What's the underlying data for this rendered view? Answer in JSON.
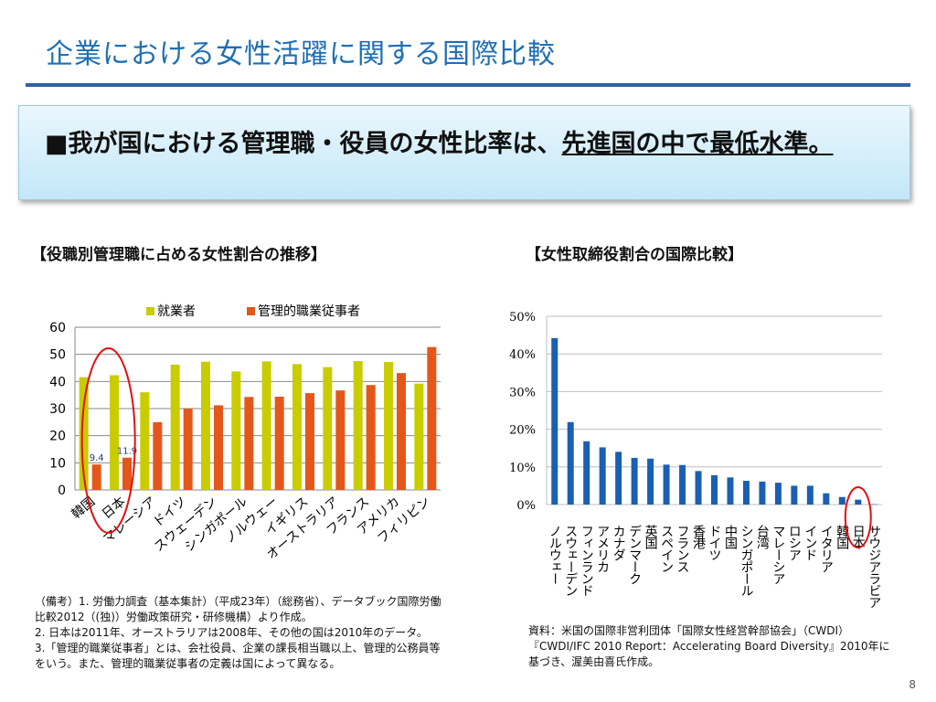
{
  "slide": {
    "title": "企業における女性活躍に関する国際比較",
    "callout": {
      "bullet": "■",
      "text_plain": "我が国における管理職・役員の女性比率は、",
      "text_underlined": "先進国の中で最低水準。"
    },
    "page_number": "8"
  },
  "left_chart": {
    "heading": "【役職別管理職に占める女性割合の推移】",
    "notes": [
      "（備考）1. 労働力調査（基本集計）（平成23年）（総務省）、データブック国際労働比較2012（(独)）労働政策研究・研修機構）より作成。",
      "2. 日本は2011年、オーストラリアは2008年、その他の国は2010年のデータ。",
      "3.「管理的職業従事者」とは、会社役員、企業の課長相当職以上、管理的公務員等をいう。また、管理的職業従事者の定義は国によって異なる。"
    ]
  },
  "right_chart": {
    "heading": "【女性取締役割合の国際比較】",
    "source": "資料：米国の国際非営利団体「国際女性経営幹部協会」（CWDI）『CWDI/IFC 2010 Report：Accelerating Board Diversity』2010年に基づき、渥美由喜氏作成。"
  },
  "chart_data": [
    {
      "type": "bar",
      "categories": [
        "韓国",
        "日本",
        "マレーシア",
        "ドイツ",
        "スウェーデン",
        "シンガポール",
        "ノルウェー",
        "イギリス",
        "オーストラリア",
        "フランス",
        "アメリカ",
        "フィリピン"
      ],
      "series": [
        {
          "name": "就業者",
          "color": "#c8cc00",
          "values": [
            41.6,
            42.3,
            36.0,
            46.2,
            47.3,
            43.7,
            47.4,
            46.4,
            45.3,
            47.5,
            47.2,
            39.2
          ]
        },
        {
          "name": "管理的職業従事者",
          "color": "#e4571b",
          "values": [
            9.4,
            11.9,
            25.0,
            30.0,
            31.2,
            34.3,
            34.4,
            35.7,
            36.7,
            38.7,
            43.1,
            52.7
          ]
        }
      ],
      "data_labels": [
        {
          "category": "韓国",
          "series": "管理的職業従事者",
          "text": "9.4"
        },
        {
          "category": "日本",
          "series": "管理的職業従事者",
          "text": "11.9"
        }
      ],
      "ylim": [
        0,
        60
      ],
      "yticks": [
        "0",
        "10",
        "20",
        "30",
        "40",
        "50",
        "60"
      ],
      "legend_position": "top",
      "grid": true,
      "highlight": {
        "categories": [
          "韓国",
          "日本"
        ],
        "shape": "ellipse",
        "color": "#e01010"
      }
    },
    {
      "type": "bar",
      "categories": [
        "ノルウェー",
        "スウェーデン",
        "フィンランド",
        "アメリカ",
        "カナダ",
        "デンマーク",
        "英国",
        "スペイン",
        "フランス",
        "香港",
        "ドイツ",
        "中国",
        "シンガポール",
        "台湾",
        "マレーシア",
        "ロシア",
        "インド",
        "イタリア",
        "韓国",
        "日本",
        "サウジアラビア"
      ],
      "series": [
        {
          "name": "",
          "color": "#1a5fb4",
          "values": [
            44.2,
            21.9,
            16.8,
            15.2,
            14.0,
            12.4,
            12.2,
            10.6,
            10.5,
            8.9,
            7.8,
            7.2,
            6.3,
            6.1,
            5.8,
            5.0,
            5.0,
            3.0,
            2.0,
            1.3,
            0.1
          ]
        }
      ],
      "ylim": [
        0,
        50
      ],
      "yticks": [
        "0%",
        "10%",
        "20%",
        "30%",
        "40%",
        "50%"
      ],
      "grid": true,
      "highlight": {
        "categories": [
          "日本"
        ],
        "shape": "ellipse",
        "color": "#e01010"
      }
    }
  ]
}
